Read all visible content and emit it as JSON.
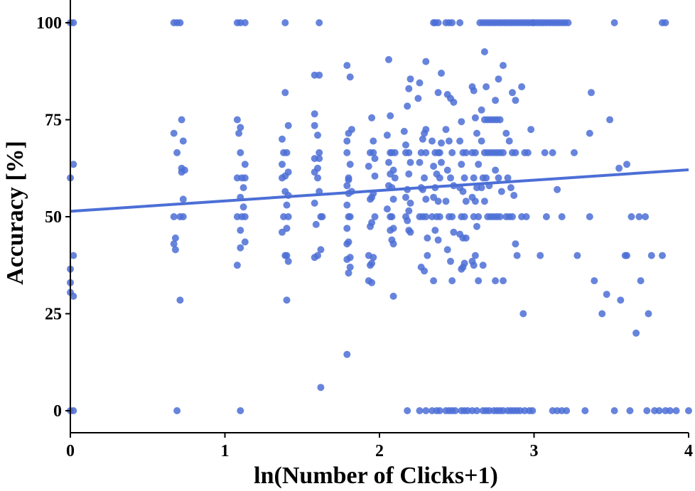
{
  "chart_data": {
    "type": "scatter",
    "xlabel": "ln(Number of Clicks+1)",
    "ylabel": "Accuracy [%]",
    "xlim": [
      0,
      4
    ],
    "ylim": [
      -5,
      105
    ],
    "xticks": [
      0,
      1,
      2,
      3,
      4
    ],
    "yticks": [
      0,
      25,
      50,
      75,
      100
    ],
    "grid": false,
    "point_color": "#4c6fd6",
    "line_color": "#4c6fd6",
    "trend_line": {
      "x": [
        0,
        4
      ],
      "y": [
        51.4,
        62.1
      ]
    },
    "points": [
      [
        0.0,
        100
      ],
      [
        0.02,
        100
      ],
      [
        0.0,
        0
      ],
      [
        0.02,
        0
      ],
      [
        0.0,
        60
      ],
      [
        0.02,
        63.5
      ],
      [
        0.02,
        40
      ],
      [
        0.0,
        36.5
      ],
      [
        0.0,
        33
      ],
      [
        0.0,
        30.5
      ],
      [
        0.02,
        29.5
      ],
      [
        0.67,
        100
      ],
      [
        0.69,
        100
      ],
      [
        0.71,
        100
      ],
      [
        0.69,
        0
      ],
      [
        0.67,
        71.5
      ],
      [
        0.72,
        75
      ],
      [
        0.73,
        69.5
      ],
      [
        0.69,
        66.5
      ],
      [
        0.72,
        62.5
      ],
      [
        0.72,
        61.5
      ],
      [
        0.74,
        62
      ],
      [
        0.73,
        54.5
      ],
      [
        0.67,
        50
      ],
      [
        0.71,
        50
      ],
      [
        0.73,
        50
      ],
      [
        0.68,
        44.5
      ],
      [
        0.67,
        43
      ],
      [
        0.68,
        41.5
      ],
      [
        0.71,
        28.5
      ],
      [
        1.08,
        100
      ],
      [
        1.1,
        100
      ],
      [
        1.13,
        100
      ],
      [
        1.1,
        0
      ],
      [
        1.08,
        75
      ],
      [
        1.1,
        73
      ],
      [
        1.09,
        71.5
      ],
      [
        1.1,
        66.5
      ],
      [
        1.13,
        63.5
      ],
      [
        1.08,
        60
      ],
      [
        1.11,
        60
      ],
      [
        1.13,
        60
      ],
      [
        1.12,
        57.5
      ],
      [
        1.1,
        55
      ],
      [
        1.08,
        50
      ],
      [
        1.11,
        50
      ],
      [
        1.13,
        50
      ],
      [
        1.12,
        52.5
      ],
      [
        1.1,
        46.5
      ],
      [
        1.13,
        43.5
      ],
      [
        1.1,
        42
      ],
      [
        1.08,
        37.5
      ],
      [
        1.39,
        100
      ],
      [
        1.39,
        82
      ],
      [
        1.41,
        73.5
      ],
      [
        1.37,
        70
      ],
      [
        1.38,
        66.5
      ],
      [
        1.4,
        66.5
      ],
      [
        1.37,
        63.5
      ],
      [
        1.41,
        61.5
      ],
      [
        1.39,
        60.5
      ],
      [
        1.37,
        60
      ],
      [
        1.39,
        56.5
      ],
      [
        1.41,
        55.5
      ],
      [
        1.4,
        53
      ],
      [
        1.38,
        50
      ],
      [
        1.41,
        50
      ],
      [
        1.4,
        47
      ],
      [
        1.37,
        46
      ],
      [
        1.39,
        40
      ],
      [
        1.4,
        40
      ],
      [
        1.41,
        38.5
      ],
      [
        1.4,
        28.5
      ],
      [
        1.61,
        100
      ],
      [
        1.58,
        86.5
      ],
      [
        1.61,
        86.5
      ],
      [
        1.58,
        76.5
      ],
      [
        1.58,
        73.5
      ],
      [
        1.6,
        71
      ],
      [
        1.61,
        66.5
      ],
      [
        1.58,
        65
      ],
      [
        1.61,
        65
      ],
      [
        1.6,
        62.5
      ],
      [
        1.58,
        61.5
      ],
      [
        1.6,
        60
      ],
      [
        1.61,
        56.5
      ],
      [
        1.58,
        53.5
      ],
      [
        1.62,
        50
      ],
      [
        1.63,
        50
      ],
      [
        1.59,
        48
      ],
      [
        1.62,
        41.5
      ],
      [
        1.6,
        40
      ],
      [
        1.58,
        39.5
      ],
      [
        1.62,
        6
      ],
      [
        1.79,
        89
      ],
      [
        1.81,
        86
      ],
      [
        1.82,
        72.5
      ],
      [
        1.8,
        71.5
      ],
      [
        1.79,
        69.5
      ],
      [
        1.79,
        66.5
      ],
      [
        1.81,
        63.5
      ],
      [
        1.8,
        60
      ],
      [
        1.8,
        59.5
      ],
      [
        1.79,
        58
      ],
      [
        1.8,
        56
      ],
      [
        1.82,
        56.5
      ],
      [
        1.79,
        53
      ],
      [
        1.8,
        50
      ],
      [
        1.81,
        50
      ],
      [
        1.79,
        47
      ],
      [
        1.8,
        43.5
      ],
      [
        1.79,
        43
      ],
      [
        1.81,
        39.5
      ],
      [
        1.79,
        39
      ],
      [
        1.81,
        37
      ],
      [
        1.8,
        35.5
      ],
      [
        1.79,
        14.5
      ],
      [
        1.95,
        75.5
      ],
      [
        1.94,
        66.5
      ],
      [
        1.96,
        66.5
      ],
      [
        1.93,
        63
      ],
      [
        1.97,
        60.5
      ],
      [
        1.96,
        56
      ],
      [
        1.95,
        55
      ],
      [
        1.94,
        54.5
      ],
      [
        1.97,
        50
      ],
      [
        1.95,
        48.5
      ],
      [
        1.94,
        47.5
      ],
      [
        1.93,
        40
      ],
      [
        1.96,
        39.5
      ],
      [
        1.95,
        38
      ],
      [
        1.94,
        37.5
      ],
      [
        1.93,
        33.5
      ],
      [
        1.95,
        33
      ],
      [
        1.96,
        69.5
      ],
      [
        1.97,
        65
      ],
      [
        2.06,
        90.5
      ],
      [
        2.07,
        76
      ],
      [
        2.05,
        71
      ],
      [
        2.08,
        66.5
      ],
      [
        2.07,
        66.5
      ],
      [
        2.06,
        64
      ],
      [
        2.09,
        62
      ],
      [
        2.07,
        61
      ],
      [
        2.06,
        58
      ],
      [
        2.08,
        57.5
      ],
      [
        2.09,
        54.5
      ],
      [
        2.05,
        52
      ],
      [
        2.07,
        50
      ],
      [
        2.08,
        50
      ],
      [
        2.09,
        47
      ],
      [
        2.07,
        46.5
      ],
      [
        2.08,
        44
      ],
      [
        2.09,
        43
      ],
      [
        2.09,
        29.5
      ],
      [
        2.1,
        66.5
      ],
      [
        2.1,
        60
      ],
      [
        2.16,
        72
      ],
      [
        2.18,
        78.5
      ],
      [
        2.19,
        83
      ],
      [
        2.2,
        85.5
      ],
      [
        2.17,
        66.5
      ],
      [
        2.19,
        66.5
      ],
      [
        2.2,
        64
      ],
      [
        2.19,
        61
      ],
      [
        2.18,
        57
      ],
      [
        2.17,
        55
      ],
      [
        2.2,
        53.5
      ],
      [
        2.19,
        51.5
      ],
      [
        2.17,
        50
      ],
      [
        2.18,
        49
      ],
      [
        2.19,
        46.5
      ],
      [
        2.2,
        46
      ],
      [
        2.18,
        0
      ],
      [
        2.17,
        68.5
      ],
      [
        2.25,
        80.5
      ],
      [
        2.26,
        84.5
      ],
      [
        2.28,
        70
      ],
      [
        2.29,
        71.5
      ],
      [
        2.27,
        66.5
      ],
      [
        2.3,
        66.5
      ],
      [
        2.26,
        64
      ],
      [
        2.29,
        60
      ],
      [
        2.27,
        57.5
      ],
      [
        2.28,
        57
      ],
      [
        2.3,
        54.5
      ],
      [
        2.26,
        50
      ],
      [
        2.28,
        50
      ],
      [
        2.3,
        50
      ],
      [
        2.27,
        37
      ],
      [
        2.29,
        36
      ],
      [
        2.3,
        0
      ],
      [
        2.26,
        0
      ],
      [
        2.3,
        90
      ],
      [
        2.3,
        72.5
      ],
      [
        2.31,
        44.5
      ],
      [
        2.31,
        40
      ],
      [
        2.35,
        100
      ],
      [
        2.36,
        100
      ],
      [
        2.38,
        100
      ],
      [
        2.34,
        69.5
      ],
      [
        2.36,
        66.5
      ],
      [
        2.38,
        66.5
      ],
      [
        2.35,
        63
      ],
      [
        2.37,
        61
      ],
      [
        2.39,
        60
      ],
      [
        2.36,
        57.5
      ],
      [
        2.35,
        55
      ],
      [
        2.38,
        54
      ],
      [
        2.34,
        50
      ],
      [
        2.37,
        50
      ],
      [
        2.39,
        50
      ],
      [
        2.36,
        46.5
      ],
      [
        2.38,
        44
      ],
      [
        2.35,
        33.5
      ],
      [
        2.34,
        0
      ],
      [
        2.37,
        0
      ],
      [
        2.39,
        0
      ],
      [
        2.38,
        82
      ],
      [
        2.4,
        87
      ],
      [
        2.4,
        69
      ],
      [
        2.4,
        64
      ],
      [
        2.39,
        66.5
      ],
      [
        2.43,
        100
      ],
      [
        2.45,
        100
      ],
      [
        2.47,
        100
      ],
      [
        2.44,
        81.5
      ],
      [
        2.46,
        80.5
      ],
      [
        2.48,
        79.5
      ],
      [
        2.43,
        72.5
      ],
      [
        2.45,
        69.5
      ],
      [
        2.47,
        66.5
      ],
      [
        2.44,
        62
      ],
      [
        2.46,
        60
      ],
      [
        2.48,
        58
      ],
      [
        2.43,
        54
      ],
      [
        2.45,
        50
      ],
      [
        2.47,
        50
      ],
      [
        2.48,
        46
      ],
      [
        2.44,
        41.5
      ],
      [
        2.46,
        38.5
      ],
      [
        2.47,
        33.5
      ],
      [
        2.45,
        0
      ],
      [
        2.47,
        0
      ],
      [
        2.49,
        0
      ],
      [
        2.43,
        0
      ],
      [
        2.53,
        74.5
      ],
      [
        2.52,
        69.5
      ],
      [
        2.54,
        66.5
      ],
      [
        2.56,
        66.5
      ],
      [
        2.53,
        63.5
      ],
      [
        2.55,
        60
      ],
      [
        2.52,
        57.5
      ],
      [
        2.54,
        56.5
      ],
      [
        2.56,
        54
      ],
      [
        2.53,
        50
      ],
      [
        2.55,
        50
      ],
      [
        2.52,
        45.5
      ],
      [
        2.54,
        44.5
      ],
      [
        2.56,
        44.5
      ],
      [
        2.55,
        38
      ],
      [
        2.54,
        37
      ],
      [
        2.53,
        36.5
      ],
      [
        2.53,
        0
      ],
      [
        2.55,
        0
      ],
      [
        2.57,
        0
      ],
      [
        2.52,
        100
      ],
      [
        2.6,
        83.5
      ],
      [
        2.61,
        82.5
      ],
      [
        2.62,
        75.5
      ],
      [
        2.63,
        71.5
      ],
      [
        2.6,
        66.5
      ],
      [
        2.62,
        66.5
      ],
      [
        2.64,
        63.5
      ],
      [
        2.61,
        60
      ],
      [
        2.63,
        57.5
      ],
      [
        2.6,
        55
      ],
      [
        2.62,
        54
      ],
      [
        2.64,
        50
      ],
      [
        2.61,
        50
      ],
      [
        2.63,
        47.5
      ],
      [
        2.62,
        40
      ],
      [
        2.6,
        38.5
      ],
      [
        2.61,
        37.5
      ],
      [
        2.64,
        33.5
      ],
      [
        2.63,
        0
      ],
      [
        2.6,
        0
      ],
      [
        2.65,
        100
      ],
      [
        2.67,
        100
      ],
      [
        2.69,
        100
      ],
      [
        2.71,
        100
      ],
      [
        2.68,
        92.5
      ],
      [
        2.66,
        77.5
      ],
      [
        2.68,
        75
      ],
      [
        2.7,
        75
      ],
      [
        2.72,
        75
      ],
      [
        2.66,
        69.5
      ],
      [
        2.68,
        66.5
      ],
      [
        2.7,
        66.5
      ],
      [
        2.72,
        66.5
      ],
      [
        2.67,
        60
      ],
      [
        2.69,
        60
      ],
      [
        2.71,
        58
      ],
      [
        2.66,
        57.5
      ],
      [
        2.68,
        54
      ],
      [
        2.7,
        50
      ],
      [
        2.72,
        50
      ],
      [
        2.67,
        37.5
      ],
      [
        2.69,
        0
      ],
      [
        2.71,
        0
      ],
      [
        2.67,
        0
      ],
      [
        2.69,
        83.5
      ],
      [
        2.73,
        100
      ],
      [
        2.75,
        100
      ],
      [
        2.77,
        100
      ],
      [
        2.79,
        100
      ],
      [
        2.74,
        75
      ],
      [
        2.76,
        75
      ],
      [
        2.78,
        75
      ],
      [
        2.75,
        80
      ],
      [
        2.77,
        85.5
      ],
      [
        2.8,
        89
      ],
      [
        2.74,
        66.5
      ],
      [
        2.76,
        66.5
      ],
      [
        2.78,
        66.5
      ],
      [
        2.8,
        66.5
      ],
      [
        2.75,
        62
      ],
      [
        2.77,
        60
      ],
      [
        2.79,
        56.5
      ],
      [
        2.74,
        50
      ],
      [
        2.76,
        50
      ],
      [
        2.78,
        50
      ],
      [
        2.75,
        33.5
      ],
      [
        2.8,
        33.5
      ],
      [
        2.74,
        0
      ],
      [
        2.76,
        0
      ],
      [
        2.78,
        0
      ],
      [
        2.8,
        0
      ],
      [
        2.81,
        100
      ],
      [
        2.83,
        100
      ],
      [
        2.85,
        100
      ],
      [
        2.87,
        100
      ],
      [
        2.89,
        100
      ],
      [
        2.82,
        71.5
      ],
      [
        2.84,
        69.5
      ],
      [
        2.86,
        66.5
      ],
      [
        2.88,
        66.5
      ],
      [
        2.83,
        60
      ],
      [
        2.85,
        57.5
      ],
      [
        2.87,
        55.5
      ],
      [
        2.82,
        50
      ],
      [
        2.84,
        50
      ],
      [
        2.86,
        50
      ],
      [
        2.88,
        43
      ],
      [
        2.89,
        40
      ],
      [
        2.83,
        0
      ],
      [
        2.85,
        0
      ],
      [
        2.87,
        0
      ],
      [
        2.89,
        0
      ],
      [
        2.86,
        82
      ],
      [
        2.88,
        80
      ],
      [
        2.91,
        100
      ],
      [
        2.93,
        100
      ],
      [
        2.95,
        100
      ],
      [
        2.97,
        100
      ],
      [
        2.99,
        100
      ],
      [
        2.92,
        83.5
      ],
      [
        2.94,
        66.5
      ],
      [
        2.96,
        66.5
      ],
      [
        2.98,
        72.5
      ],
      [
        2.92,
        50
      ],
      [
        2.95,
        50
      ],
      [
        2.93,
        25
      ],
      [
        2.91,
        0
      ],
      [
        2.94,
        0
      ],
      [
        2.97,
        0
      ],
      [
        2.99,
        0
      ],
      [
        3.0,
        100
      ],
      [
        3.02,
        100
      ],
      [
        3.04,
        100
      ],
      [
        3.06,
        100
      ],
      [
        3.08,
        100
      ],
      [
        3.1,
        100
      ],
      [
        3.12,
        100
      ],
      [
        3.14,
        100
      ],
      [
        3.16,
        100
      ],
      [
        3.18,
        100
      ],
      [
        3.2,
        100
      ],
      [
        3.22,
        100
      ],
      [
        3.07,
        66.5
      ],
      [
        3.12,
        66.5
      ],
      [
        3.15,
        57
      ],
      [
        3.08,
        50
      ],
      [
        3.18,
        50
      ],
      [
        3.04,
        40
      ],
      [
        3.12,
        0
      ],
      [
        3.15,
        0
      ],
      [
        3.18,
        0
      ],
      [
        3.21,
        0
      ],
      [
        3.26,
        66.5
      ],
      [
        3.28,
        40
      ],
      [
        3.33,
        0
      ],
      [
        3.36,
        71.5
      ],
      [
        3.37,
        82
      ],
      [
        3.36,
        50
      ],
      [
        3.39,
        33.5
      ],
      [
        3.44,
        25
      ],
      [
        3.47,
        30
      ],
      [
        3.49,
        75
      ],
      [
        3.52,
        0
      ],
      [
        3.52,
        100
      ],
      [
        3.55,
        62.5
      ],
      [
        3.56,
        28.5
      ],
      [
        3.59,
        40
      ],
      [
        3.6,
        40
      ],
      [
        3.6,
        63.5
      ],
      [
        3.62,
        0
      ],
      [
        3.63,
        50
      ],
      [
        3.66,
        20
      ],
      [
        3.68,
        50
      ],
      [
        3.69,
        33.5
      ],
      [
        3.72,
        50
      ],
      [
        3.73,
        0
      ],
      [
        3.74,
        25
      ],
      [
        3.76,
        40
      ],
      [
        3.78,
        0
      ],
      [
        3.81,
        0
      ],
      [
        3.83,
        40
      ],
      [
        3.83,
        100
      ],
      [
        3.85,
        100
      ],
      [
        3.85,
        0
      ],
      [
        3.88,
        0
      ],
      [
        3.92,
        0
      ],
      [
        4.0,
        0
      ]
    ]
  }
}
